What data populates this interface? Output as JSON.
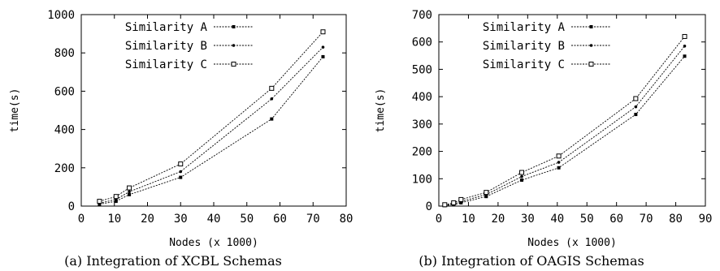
{
  "chart_data": [
    {
      "type": "line",
      "caption": "(a) Integration of XCBL Schemas",
      "xlabel": "Nodes (x 1000)",
      "ylabel": "time(s)",
      "xlim": [
        0,
        80
      ],
      "ylim": [
        0,
        1000
      ],
      "xticks": [
        0,
        10,
        20,
        30,
        40,
        50,
        60,
        70,
        80
      ],
      "yticks": [
        0,
        200,
        400,
        600,
        800,
        1000
      ],
      "grid": false,
      "legend_position": "top-left",
      "series": [
        {
          "name": "Similarity A",
          "marker": "filled-square",
          "x": [
            5.5,
            10.5,
            14.5,
            30,
            57.5,
            73
          ],
          "y": [
            10,
            25,
            60,
            150,
            455,
            780
          ]
        },
        {
          "name": "Similarity B",
          "marker": "dot",
          "x": [
            5.5,
            10.5,
            14.5,
            30,
            57.5,
            73
          ],
          "y": [
            15,
            35,
            75,
            180,
            560,
            830
          ]
        },
        {
          "name": "Similarity C",
          "marker": "open-square",
          "x": [
            5.5,
            10.5,
            14.5,
            30,
            57.5,
            73
          ],
          "y": [
            25,
            50,
            95,
            220,
            615,
            910
          ]
        }
      ]
    },
    {
      "type": "line",
      "caption": "(b) Integration of OAGIS Schemas",
      "xlabel": "Nodes (x 1000)",
      "ylabel": "time(s)",
      "xlim": [
        0,
        90
      ],
      "ylim": [
        0,
        700
      ],
      "xticks": [
        0,
        10,
        20,
        30,
        40,
        50,
        60,
        70,
        80,
        90
      ],
      "yticks": [
        0,
        100,
        200,
        300,
        400,
        500,
        600,
        700
      ],
      "grid": false,
      "legend_position": "top-left",
      "series": [
        {
          "name": "Similarity A",
          "marker": "filled-square",
          "x": [
            2,
            5,
            7.5,
            16,
            28,
            40.5,
            66.5,
            83
          ],
          "y": [
            2,
            5,
            12,
            35,
            95,
            140,
            335,
            548
          ]
        },
        {
          "name": "Similarity B",
          "marker": "dot",
          "x": [
            2,
            5,
            7.5,
            16,
            28,
            40.5,
            66.5,
            83
          ],
          "y": [
            3,
            8,
            17,
            42,
            108,
            160,
            363,
            585
          ]
        },
        {
          "name": "Similarity C",
          "marker": "open-square",
          "x": [
            2,
            5,
            7.5,
            16,
            28,
            40.5,
            66.5,
            83
          ],
          "y": [
            5,
            12,
            24,
            50,
            123,
            183,
            393,
            620
          ]
        }
      ]
    }
  ]
}
